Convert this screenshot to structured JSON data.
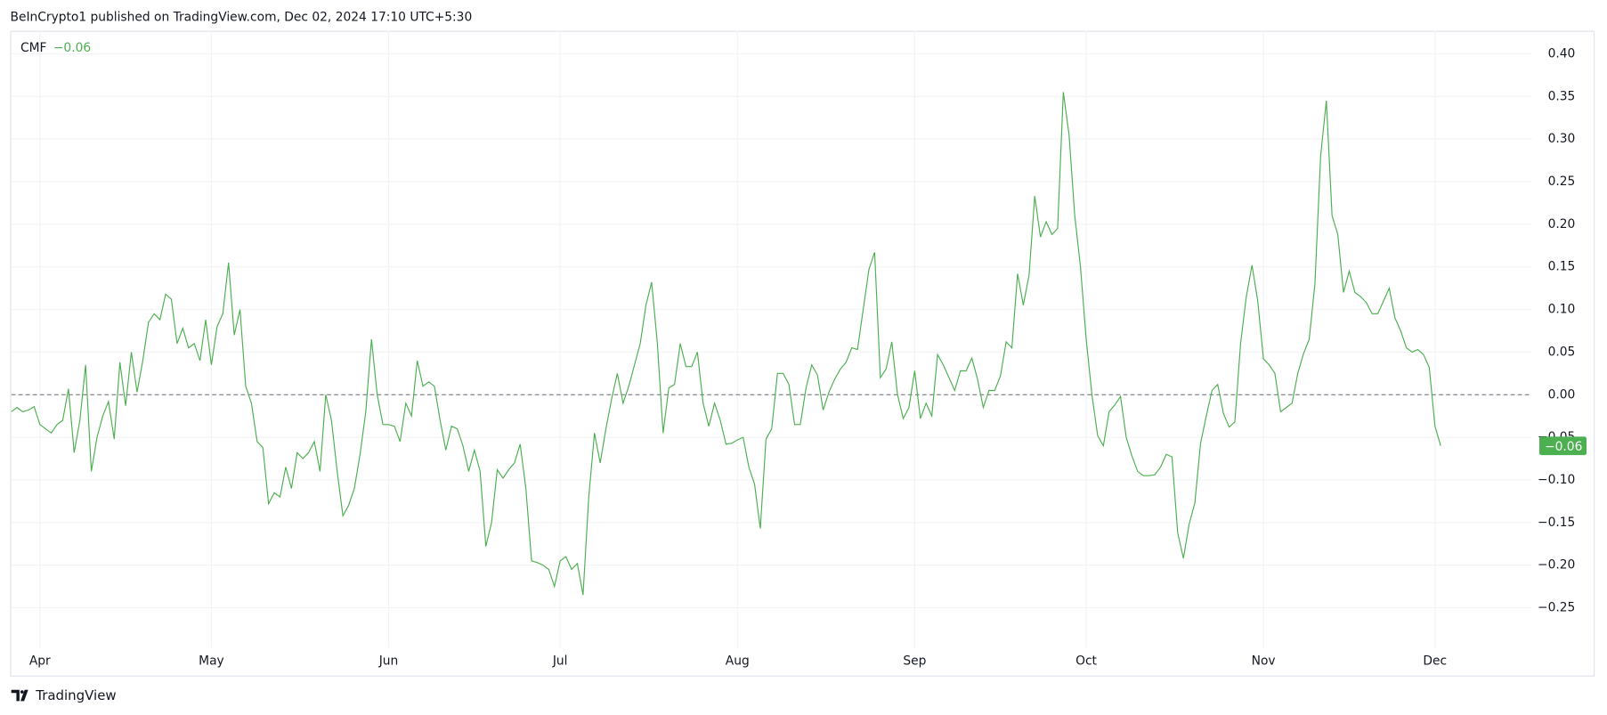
{
  "header": "BeInCrypto1 published on TradingView.com, Dec 02, 2024 17:10 UTC+5:30",
  "brand": "TradingView",
  "chart_data": {
    "type": "line",
    "series": [
      {
        "name": "CMF",
        "color": "#4caf50",
        "last_label": "−0.06",
        "values": [
          -0.02,
          -0.015,
          -0.02,
          -0.018,
          -0.014,
          -0.035,
          -0.04,
          -0.045,
          -0.035,
          -0.03,
          0.007,
          -0.068,
          -0.03,
          0.035,
          -0.09,
          -0.05,
          -0.025,
          -0.008,
          -0.052,
          0.038,
          -0.013,
          0.05,
          0.003,
          0.04,
          0.085,
          0.095,
          0.088,
          0.118,
          0.112,
          0.06,
          0.078,
          0.055,
          0.06,
          0.04,
          0.088,
          0.035,
          0.08,
          0.095,
          0.155,
          0.07,
          0.1,
          0.01,
          -0.01,
          -0.055,
          -0.062,
          -0.128,
          -0.115,
          -0.12,
          -0.085,
          -0.11,
          -0.068,
          -0.075,
          -0.068,
          -0.055,
          -0.09,
          0,
          -0.03,
          -0.09,
          -0.142,
          -0.13,
          -0.11,
          -0.07,
          -0.02,
          0.065,
          0.0,
          -0.035,
          -0.035,
          -0.037,
          -0.055,
          -0.01,
          -0.025,
          0.04,
          0.01,
          0.015,
          0.01,
          -0.03,
          -0.065,
          -0.037,
          -0.04,
          -0.06,
          -0.09,
          -0.065,
          -0.09,
          -0.178,
          -0.15,
          -0.088,
          -0.098,
          -0.088,
          -0.08,
          -0.058,
          -0.11,
          -0.195,
          -0.197,
          -0.2,
          -0.205,
          -0.225,
          -0.195,
          -0.19,
          -0.205,
          -0.198,
          -0.235,
          -0.12,
          -0.045,
          -0.08,
          -0.04,
          -0.005,
          0.025,
          -0.01,
          0.01,
          0.035,
          0.06,
          0.105,
          0.132,
          0.06,
          -0.045,
          0.008,
          0.012,
          0.06,
          0.033,
          0.033,
          0.05,
          -0.01,
          -0.037,
          -0.01,
          -0.03,
          -0.058,
          -0.057,
          -0.053,
          -0.05,
          -0.085,
          -0.105,
          -0.157,
          -0.052,
          -0.04,
          0.025,
          0.025,
          0.012,
          -0.035,
          -0.035,
          0.008,
          0.035,
          0.023,
          -0.018,
          0.003,
          0.018,
          0.03,
          0.038,
          0.055,
          0.053,
          0.1,
          0.147,
          0.167,
          0.02,
          0.03,
          0.062,
          0.0,
          -0.028,
          -0.015,
          0.028,
          -0.028,
          -0.01,
          -0.025,
          0.047,
          0.035,
          0.02,
          0.005,
          0.028,
          0.028,
          0.043,
          0.018,
          -0.015,
          0.005,
          0.005,
          0.022,
          0.062,
          0.055,
          0.142,
          0.105,
          0.14,
          0.233,
          0.185,
          0.203,
          0.188,
          0.195,
          0.355,
          0.305,
          0.21,
          0.15,
          0.065,
          0.0,
          -0.048,
          -0.06,
          -0.02,
          -0.012,
          -0.002,
          -0.05,
          -0.072,
          -0.09,
          -0.095,
          -0.095,
          -0.094,
          -0.085,
          -0.07,
          -0.073,
          -0.162,
          -0.192,
          -0.152,
          -0.127,
          -0.057,
          -0.025,
          0.005,
          0.012,
          -0.022,
          -0.038,
          -0.032,
          0.06,
          0.115,
          0.152,
          0.11,
          0.042,
          0.035,
          0.025,
          -0.02,
          -0.015,
          -0.01,
          0.025,
          0.048,
          0.065,
          0.13,
          0.28,
          0.345,
          0.21,
          0.188,
          0.12,
          0.145,
          0.12,
          0.115,
          0.108,
          0.095,
          0.095,
          0.11,
          0.125,
          0.09,
          0.075,
          0.055,
          0.05,
          0.053,
          0.047,
          0.032,
          -0.037,
          -0.06
        ]
      }
    ],
    "xlim": [
      0,
      266
    ],
    "xticks": [
      {
        "value": 5,
        "label": "Apr"
      },
      {
        "value": 35,
        "label": "May"
      },
      {
        "value": 66,
        "label": "Jun"
      },
      {
        "value": 96,
        "label": "Jul"
      },
      {
        "value": 127,
        "label": "Aug"
      },
      {
        "value": 158,
        "label": "Sep"
      },
      {
        "value": 188,
        "label": "Oct"
      },
      {
        "value": 219,
        "label": "Nov"
      },
      {
        "value": 249,
        "label": "Dec"
      }
    ],
    "ylim": [
      -0.297,
      0.427
    ],
    "yticks": [
      {
        "value": 0.4,
        "label": "0.40"
      },
      {
        "value": 0.35,
        "label": "0.35"
      },
      {
        "value": 0.3,
        "label": "0.30"
      },
      {
        "value": 0.25,
        "label": "0.25"
      },
      {
        "value": 0.2,
        "label": "0.20"
      },
      {
        "value": 0.15,
        "label": "0.15"
      },
      {
        "value": 0.1,
        "label": "0.10"
      },
      {
        "value": 0.05,
        "label": "0.05"
      },
      {
        "value": 0,
        "label": "0.00"
      },
      {
        "value": -0.05,
        "label": "−0.05"
      },
      {
        "value": -0.1,
        "label": "−0.10"
      },
      {
        "value": -0.15,
        "label": "−0.15"
      },
      {
        "value": -0.2,
        "label": "−0.20"
      },
      {
        "value": -0.25,
        "label": "−0.25"
      }
    ],
    "baseline": 0,
    "grid": true
  }
}
